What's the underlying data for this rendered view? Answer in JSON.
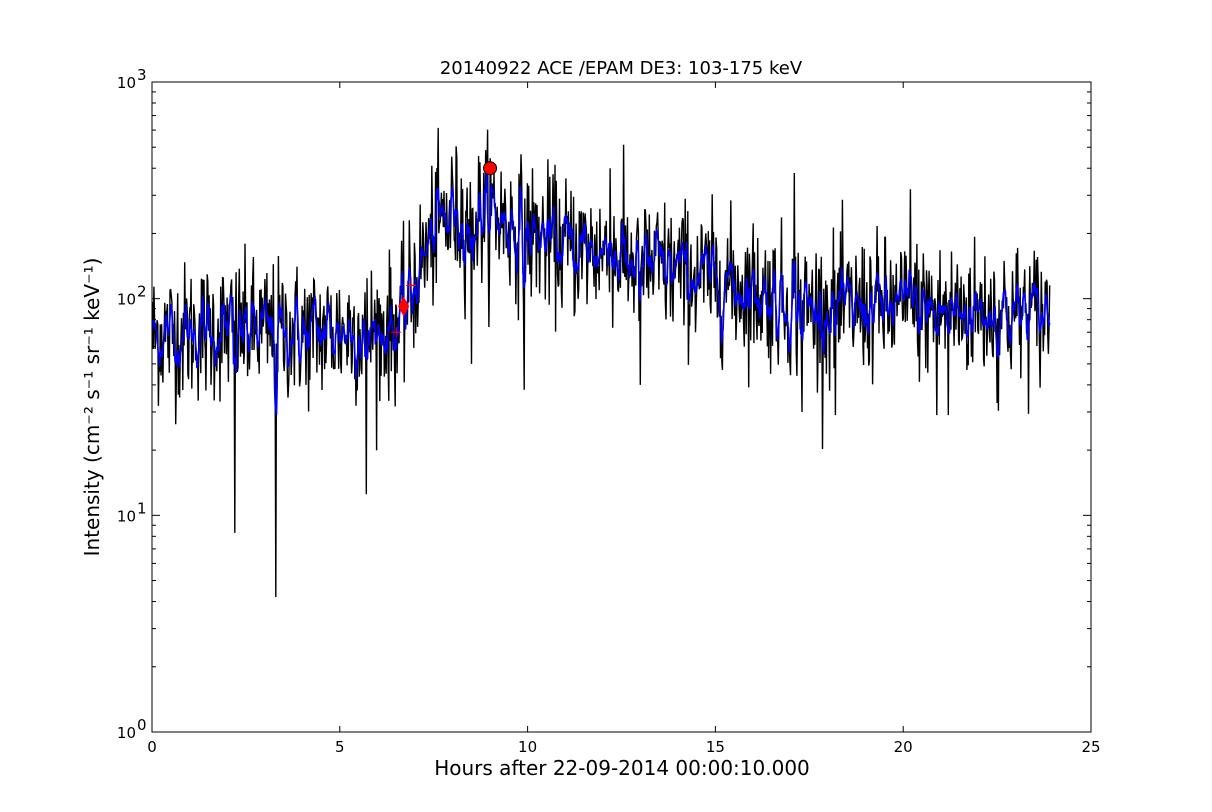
{
  "chart_data": {
    "type": "line",
    "title": "20140922 ACE /EPAM DE3: 103-175 keV",
    "xlabel": "Hours after 22-09-2014 00:00:10.000",
    "ylabel": "Intensity (cm⁻² s⁻¹ sr⁻¹ keV⁻¹)",
    "xlim": [
      0,
      25
    ],
    "ylim": [
      1,
      1000
    ],
    "yscale": "log",
    "grid": false,
    "x_ticks": [
      0,
      5,
      10,
      15,
      20,
      25
    ],
    "x_tick_labels": [
      "0",
      "5",
      "10",
      "15",
      "20",
      "25"
    ],
    "y_ticks": [
      1,
      10,
      100,
      1000
    ],
    "y_tick_labels": [
      "10",
      "10",
      "10",
      "10"
    ],
    "y_tick_exponents": [
      "0",
      "1",
      "2",
      "3"
    ],
    "series": [
      {
        "color": "#000000",
        "style": "raw",
        "profile": [
          [
            0,
            68
          ],
          [
            2,
            72
          ],
          [
            4,
            70
          ],
          [
            6,
            72
          ],
          [
            6.6,
            75
          ],
          [
            7.2,
            150
          ],
          [
            7.6,
            220
          ],
          [
            8,
            240
          ],
          [
            8.5,
            230
          ],
          [
            9,
            260
          ],
          [
            9.5,
            220
          ],
          [
            10,
            200
          ],
          [
            11,
            175
          ],
          [
            12,
            165
          ],
          [
            13,
            145
          ],
          [
            14,
            135
          ],
          [
            15,
            122
          ],
          [
            16,
            110
          ],
          [
            17,
            95
          ],
          [
            18,
            88
          ],
          [
            19,
            92
          ],
          [
            20,
            90
          ],
          [
            21,
            88
          ],
          [
            22,
            88
          ],
          [
            23,
            86
          ],
          [
            23.9,
            86
          ]
        ],
        "spikes": [
          [
            2.2,
            8.3
          ],
          [
            3.3,
            4.2
          ],
          [
            5.7,
            12.5
          ],
          [
            6.1,
            44
          ],
          [
            4.1,
            40
          ],
          [
            9.9,
            38
          ],
          [
            12.2,
            400
          ],
          [
            8.5,
            50
          ],
          [
            13,
            40
          ],
          [
            17.3,
            30
          ],
          [
            17.1,
            380
          ],
          [
            18.2,
            29
          ],
          [
            20.2,
            320
          ],
          [
            20.9,
            29
          ],
          [
            21.2,
            29
          ],
          [
            22.5,
            33
          ],
          [
            9.1,
            380
          ],
          [
            8.0,
            380
          ]
        ]
      },
      {
        "color": "#0000ff",
        "style": "smoothed",
        "profile": [
          [
            0,
            68
          ],
          [
            2,
            72
          ],
          [
            4,
            70
          ],
          [
            6,
            72
          ],
          [
            6.6,
            75
          ],
          [
            7.2,
            150
          ],
          [
            7.6,
            220
          ],
          [
            8,
            240
          ],
          [
            8.5,
            230
          ],
          [
            9,
            260
          ],
          [
            9.5,
            220
          ],
          [
            10,
            200
          ],
          [
            11,
            175
          ],
          [
            12,
            165
          ],
          [
            13,
            145
          ],
          [
            14,
            135
          ],
          [
            15,
            122
          ],
          [
            16,
            110
          ],
          [
            17,
            95
          ],
          [
            18,
            88
          ],
          [
            19,
            92
          ],
          [
            20,
            90
          ],
          [
            21,
            88
          ],
          [
            22,
            88
          ],
          [
            23,
            86
          ],
          [
            23.9,
            86
          ]
        ]
      }
    ],
    "markers": [
      {
        "shape": "circle",
        "x": 9.0,
        "y": 400,
        "color": "#ff0000"
      },
      {
        "shape": "diamond",
        "x": 6.7,
        "y": 92,
        "color": "#ff0000"
      },
      {
        "shape": "plus",
        "x": 6.5,
        "y": 70,
        "color": "#ff0000"
      },
      {
        "shape": "plus",
        "x": 6.9,
        "y": 115,
        "color": "#ff0000"
      }
    ]
  }
}
